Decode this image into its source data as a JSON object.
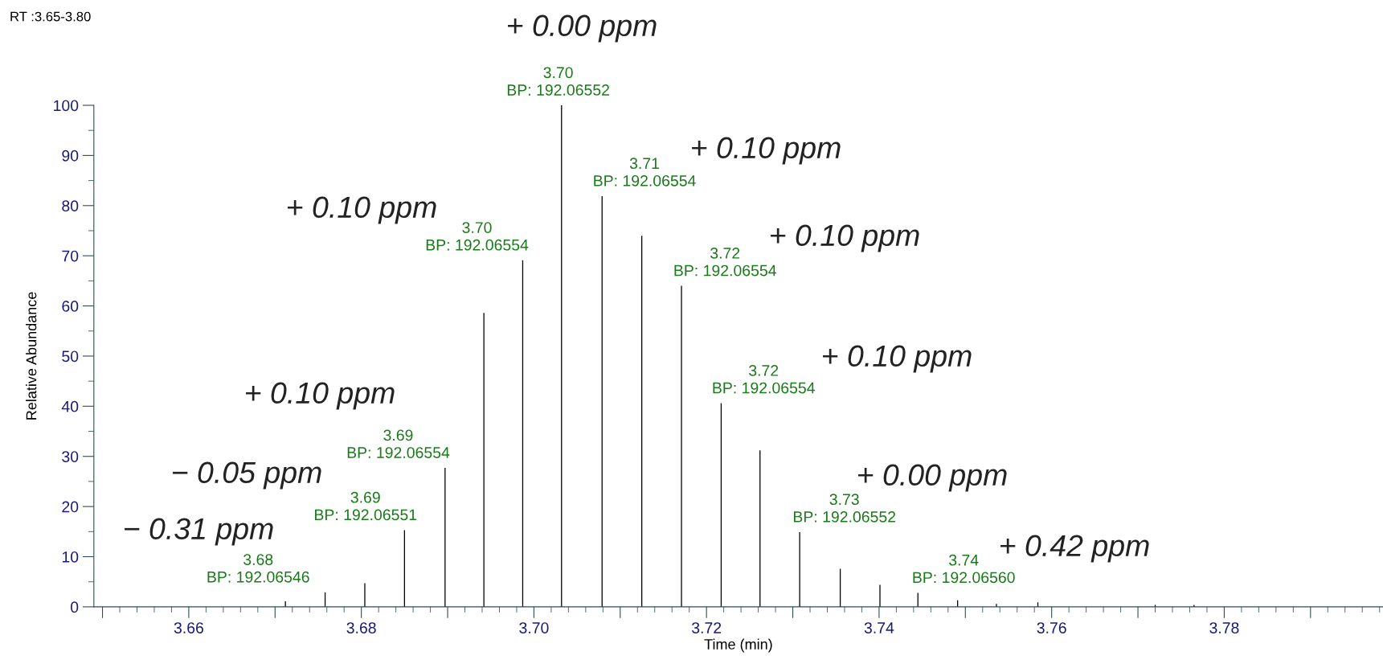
{
  "chart_data": {
    "type": "bar",
    "title": "RT :3.65-3.80",
    "xlabel": "Time (min)",
    "ylabel": "Relative Abundance",
    "x": [
      3.6712,
      3.6758,
      3.6804,
      3.685,
      3.6897,
      3.6942,
      3.6987,
      3.7032,
      3.7079,
      3.7125,
      3.7171,
      3.7217,
      3.7262,
      3.7308,
      3.7355,
      3.7401,
      3.7445,
      3.7491,
      3.7536,
      3.7584,
      3.7629,
      3.7675,
      3.772,
      3.7765
    ],
    "values": [
      1.1,
      2.9,
      4.7,
      15.3,
      27.7,
      58.6,
      69.1,
      100,
      81.9,
      74.0,
      64.0,
      40.6,
      31.2,
      14.9,
      7.6,
      4.4,
      2.8,
      1.3,
      0.6,
      0.9,
      null,
      null,
      0.4,
      0.4
    ],
    "color": "#000000",
    "xlim": [
      3.649,
      3.7984
    ],
    "ylim": [
      0,
      100
    ],
    "xticks": [
      {
        "value": 3.65,
        "label": null
      },
      3.66,
      {
        "value": 3.67,
        "label": null
      },
      3.68,
      {
        "value": 3.69,
        "label": null
      },
      "3.70",
      {
        "value": 3.71,
        "label": null
      },
      3.72,
      {
        "value": 3.73,
        "label": null
      },
      3.74,
      {
        "value": 3.75,
        "label": null
      },
      3.76,
      {
        "value": 3.77,
        "label": null
      },
      3.78,
      {
        "value": 3.79,
        "label": null
      }
    ],
    "yticks": [
      0,
      10,
      20,
      30,
      40,
      50,
      60,
      70,
      80,
      90,
      100
    ],
    "grid": false,
    "legend": false,
    "annotations": [
      {
        "text": "3.68\nBP: 192.06546",
        "x": 3.6758,
        "y": 2.9
      },
      {
        "text": "3.69\nBP: 192.06551",
        "x": 3.685,
        "y": 15.3
      },
      {
        "text": "3.69\nBP: 192.06554",
        "x": 3.6897,
        "y": 27.7
      },
      {
        "text": "3.70\nBP: 192.06554",
        "x": 3.6987,
        "y": 69.1
      },
      {
        "text": "3.70\nBP: 192.06552",
        "x": 3.7032,
        "y": 100
      },
      {
        "text": "3.71\nBP: 192.06554",
        "x": 3.7079,
        "y": 81.9
      },
      {
        "text": "3.72\nBP: 192.06554",
        "x": 3.7171,
        "y": 64.0
      },
      {
        "text": "3.72\nBP: 192.06554",
        "x": 3.7217,
        "y": 40.6
      },
      {
        "text": "3.73\nBP: 192.06552",
        "x": 3.7308,
        "y": 14.9
      },
      {
        "text": "3.74\nBP: 192.06560",
        "x": 3.7445,
        "y": 2.8
      },
      "− 0.31 ppm",
      "− 0.05 ppm",
      "+ 0.10 ppm",
      "+ 0.10 ppm",
      "+ 0.00 ppm",
      "+ 0.10 ppm",
      "+ 0.10 ppm",
      "+ 0.10 ppm",
      "+ 0.00 ppm",
      "+ 0.42 ppm"
    ]
  }
}
